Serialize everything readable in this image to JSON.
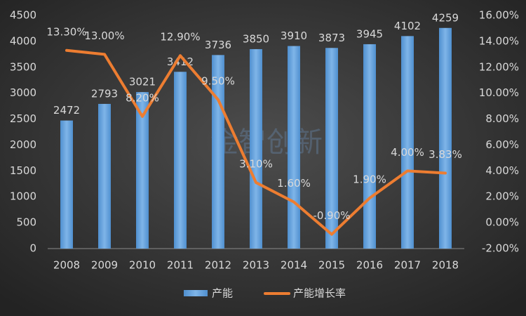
{
  "chart_data": {
    "type": "bar-line",
    "watermark": "金智创新",
    "categories": [
      "2008",
      "2009",
      "2010",
      "2011",
      "2012",
      "2013",
      "2014",
      "2015",
      "2016",
      "2017",
      "2018"
    ],
    "series": [
      {
        "name": "产能",
        "type": "bar",
        "color": "#5b9bd5",
        "values": [
          2472,
          2793,
          3021,
          3412,
          3736,
          3850,
          3910,
          3873,
          3945,
          4102,
          4259
        ]
      },
      {
        "name": "产能增长率",
        "type": "line",
        "axis": "y2",
        "color": "#ed7d31",
        "values": [
          13.3,
          13.0,
          8.2,
          12.9,
          9.5,
          3.1,
          1.6,
          -0.9,
          1.9,
          4.0,
          3.83
        ],
        "value_labels": [
          "13.30%",
          "13.00%",
          "8.20%",
          "12.90%",
          "9.50%",
          "3.10%",
          "1.60%",
          "-0.90%",
          "1.90%",
          "4.00%",
          "3.83%"
        ]
      }
    ],
    "ylim": [
      0,
      4500
    ],
    "yticks": [
      0,
      500,
      1000,
      1500,
      2000,
      2500,
      3000,
      3500,
      4000,
      4500
    ],
    "y2lim": [
      -2,
      16
    ],
    "y2ticks": [
      {
        "value": -2,
        "label": "-2.00%"
      },
      {
        "value": 0,
        "label": "0.00%"
      },
      {
        "value": 2,
        "label": "2.00%"
      },
      {
        "value": 4,
        "label": "4.00%"
      },
      {
        "value": 6,
        "label": "6.00%"
      },
      {
        "value": 8,
        "label": "8.00%"
      },
      {
        "value": 10,
        "label": "10.00%"
      },
      {
        "value": 12,
        "label": "12.00%"
      },
      {
        "value": 14,
        "label": "14.00%"
      },
      {
        "value": 16,
        "label": "16.00%"
      }
    ],
    "grid": false
  }
}
